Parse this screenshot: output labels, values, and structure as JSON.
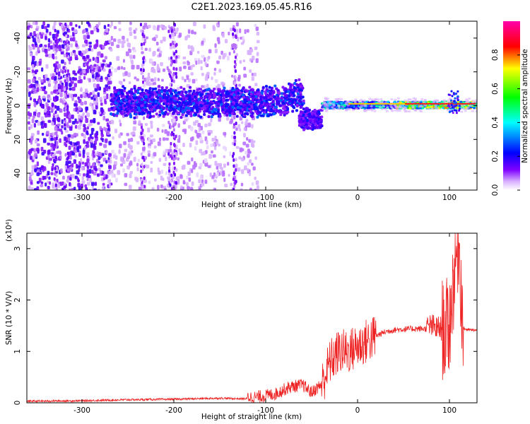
{
  "title": "C2E1.2023.169.05.45.R16",
  "chart_data": [
    {
      "type": "heatmap",
      "xlabel": "Height of straight line (km)",
      "ylabel": "Frequency (Hz)",
      "xlim": [
        -360,
        130
      ],
      "ylim": [
        -50,
        50
      ],
      "xticks": [
        -300,
        -200,
        -100,
        0,
        100
      ],
      "yticks": [
        -40,
        -20,
        0,
        20,
        40
      ],
      "colorbar": {
        "label": "Normalized spectral amplitude",
        "range": [
          0,
          1
        ],
        "ticks": [
          0.0,
          0.2,
          0.4,
          0.6,
          0.8
        ],
        "colormap": [
          "#ffffff",
          "#d9b3ff",
          "#7f00ff",
          "#0000ff",
          "#00ffff",
          "#00ff00",
          "#ffff00",
          "#ff0000",
          "#ff00ff"
        ]
      },
      "grid": false
    },
    {
      "type": "line",
      "xlabel": "Height of straight line (km)",
      "ylabel": "SNR (10 * V/V)",
      "y_multiplier": "(x10⁴)",
      "xlim": [
        -360,
        130
      ],
      "ylim": [
        0,
        3.3
      ],
      "xticks": [
        -300,
        -200,
        -100,
        0,
        100
      ],
      "yticks": [
        0,
        1,
        2,
        3
      ],
      "series": [
        {
          "color": "#ee2222",
          "x": [
            -360,
            -300,
            -250,
            -200,
            -150,
            -130,
            -110,
            -90,
            -75,
            -60,
            -50,
            -40,
            -30,
            -20,
            -10,
            0,
            10,
            20,
            30,
            40,
            50,
            60,
            70,
            75,
            80,
            85,
            90,
            95,
            100,
            105,
            110,
            115,
            120,
            130
          ],
          "y": [
            0.01,
            0.02,
            0.04,
            0.05,
            0.07,
            0.06,
            0.06,
            0.12,
            0.25,
            0.3,
            0.15,
            0.3,
            0.8,
            1.0,
            1.0,
            1.1,
            1.2,
            1.3,
            1.38,
            1.42,
            1.43,
            1.44,
            1.44,
            1.44,
            1.5,
            1.45,
            1.45,
            1.4,
            1.5,
            2.5,
            3.2,
            1.45,
            1.42,
            1.41
          ]
        }
      ]
    }
  ],
  "axis_ticks": {
    "p1_x": [
      "-300",
      "-200",
      "-100",
      "0",
      "100"
    ],
    "p1_y": [
      "40",
      "20",
      "0",
      "-20",
      "-40"
    ],
    "cb_y": [
      "0.0",
      "0.2",
      "0.4",
      "0.6",
      "0.8"
    ],
    "p2_x": [
      "-300",
      "-200",
      "-100",
      "0",
      "100"
    ],
    "p2_y": [
      "0",
      "1",
      "2",
      "3"
    ]
  },
  "labels": {
    "p1_xlabel": "Height of straight line (km)",
    "p1_ylabel": "Frequency (Hz)",
    "cb_label": "Normalized spectral amplitude",
    "p2_xlabel": "Height of straight line (km)",
    "p2_ylabel": "SNR (10 * V/V)",
    "p2_multiplier": "(x10⁴)"
  }
}
